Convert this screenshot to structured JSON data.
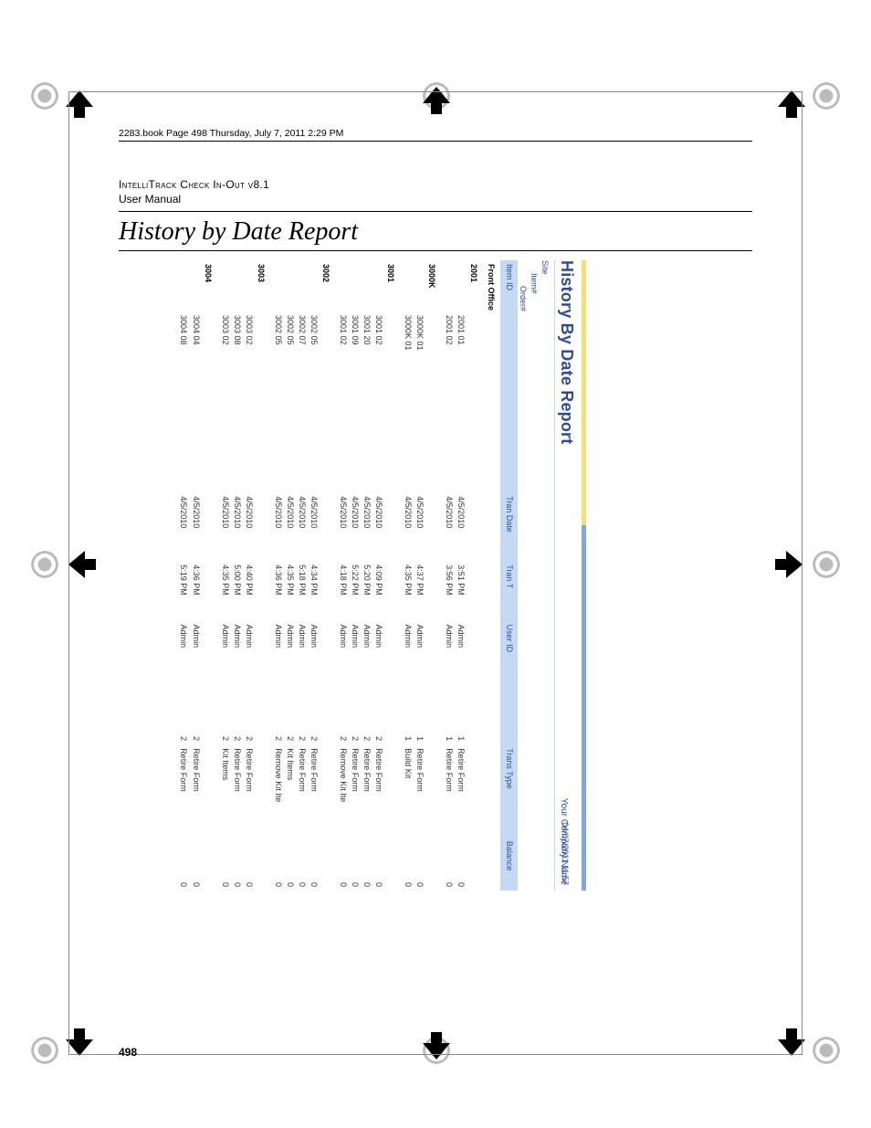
{
  "topbar": "2283.book  Page 498  Thursday, July 7, 2011  2:29 PM",
  "header": {
    "app": "IntelliTrack Check In-Out v8.1",
    "manual": "User Manual"
  },
  "section_title": "History by Date Report",
  "page_number": "498",
  "report": {
    "title": "History By Date Report",
    "company": "Your Company Name",
    "timestamp": "04/07/2011 11:57",
    "cascade": [
      "Site",
      "Item#",
      "Order#"
    ],
    "columns": [
      "Item ID",
      "Tran Date",
      "Tran T",
      "User ID",
      "",
      "Trans Type",
      "Balance"
    ],
    "site": "Front Office",
    "groups": [
      {
        "label": "2001",
        "rows": [
          {
            "item": "2001 01",
            "date": "4/5/2010",
            "time": "3:51 PM",
            "user": "Admin",
            "qty": "1",
            "type": "Retire Form",
            "bal": "0"
          },
          {
            "item": "2001 02",
            "date": "4/5/2010",
            "time": "3:56 PM",
            "user": "Admin",
            "qty": "1",
            "type": "Retire Form",
            "bal": "0"
          }
        ]
      },
      {
        "label": "3000K",
        "rows": [
          {
            "item": "3000K 01",
            "date": "4/5/2010",
            "time": "4:37 PM",
            "user": "Admin",
            "qty": "1",
            "type": "Retire Form",
            "bal": "0"
          },
          {
            "item": "3000K 01",
            "date": "4/5/2010",
            "time": "4:35 PM",
            "user": "Admin",
            "qty": "1",
            "type": "Build Kit",
            "bal": "0"
          }
        ]
      },
      {
        "label": "3001",
        "rows": [
          {
            "item": "3001 02",
            "date": "4/5/2010",
            "time": "4:09 PM",
            "user": "Admin",
            "qty": "2",
            "type": "Retire Form",
            "bal": "0"
          },
          {
            "item": "3001 20",
            "date": "4/5/2010",
            "time": "5:20 PM",
            "user": "Admin",
            "qty": "2",
            "type": "Retire Form",
            "bal": "0"
          },
          {
            "item": "3001 09",
            "date": "4/5/2010",
            "time": "5:22 PM",
            "user": "Admin",
            "qty": "2",
            "type": "Retire Form",
            "bal": "0"
          },
          {
            "item": "3001 02",
            "date": "4/5/2010",
            "time": "4:18 PM",
            "user": "Admin",
            "qty": "2",
            "type": "Remove Kit Ite",
            "bal": "0"
          }
        ]
      },
      {
        "label": "3002",
        "rows": [
          {
            "item": "3002 05",
            "date": "4/5/2010",
            "time": "4:34 PM",
            "user": "Admin",
            "qty": "2",
            "type": "Retire Form",
            "bal": "0"
          },
          {
            "item": "3002 07",
            "date": "4/5/2010",
            "time": "5:18 PM",
            "user": "Admin",
            "qty": "2",
            "type": "Retire Form",
            "bal": "0"
          },
          {
            "item": "3002 05",
            "date": "4/5/2010",
            "time": "4:35 PM",
            "user": "Admin",
            "qty": "2",
            "type": "Kit Items",
            "bal": "0"
          },
          {
            "item": "3002 05",
            "date": "4/5/2010",
            "time": "4:36 PM",
            "user": "Admin",
            "qty": "2",
            "type": "Remove Kit Ite",
            "bal": "0"
          }
        ]
      },
      {
        "label": "3003",
        "rows": [
          {
            "item": "3003 02",
            "date": "4/5/2010",
            "time": "4:40 PM",
            "user": "Admin",
            "qty": "2",
            "type": "Retire Form",
            "bal": "0"
          },
          {
            "item": "3003 08",
            "date": "4/5/2010",
            "time": "5:00 PM",
            "user": "Admin",
            "qty": "2",
            "type": "Retire Form",
            "bal": "0"
          },
          {
            "item": "3003 02",
            "date": "4/5/2010",
            "time": "4:35 PM",
            "user": "Admin",
            "qty": "2",
            "type": "Kit Items",
            "bal": "0"
          }
        ]
      },
      {
        "label": "3004",
        "rows": [
          {
            "item": "3004 04",
            "date": "4/5/2010",
            "time": "4:36 PM",
            "user": "Admin",
            "qty": "2",
            "type": "Retire Form",
            "bal": "0"
          },
          {
            "item": "3004 08",
            "date": "4/5/2010",
            "time": "5:19 PM",
            "user": "Admin",
            "qty": "2",
            "type": "Retire Form",
            "bal": "0"
          }
        ]
      }
    ]
  },
  "style": {
    "accent_blue": "#2b4aa0",
    "header_bg": "#c4daf3",
    "bar_yellow": "#f8df6d",
    "bar_blue": "#7ea7e0",
    "rule": "#c8d4ec"
  }
}
